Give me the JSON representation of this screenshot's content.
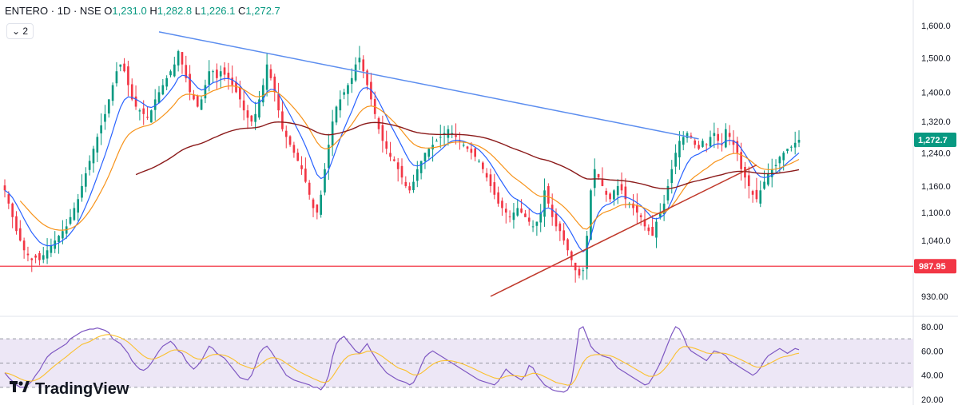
{
  "header": {
    "symbol": "ENTERO · 1D · NSE",
    "open_label": "O",
    "open": "1,231.0",
    "high_label": "H",
    "high": "1,282.8",
    "low_label": "L",
    "low": "1,226.1",
    "close_label": "C",
    "close": "1,272.7"
  },
  "count_button": {
    "chevron": "⌄",
    "label": "2"
  },
  "logo": {
    "text": "TradingView",
    "icon": "tradingview-logo-icon"
  },
  "colors": {
    "up": "#089981",
    "down": "#f23645",
    "ema_fast": "#2962ff",
    "ema_mid": "#f7931a",
    "ema_slow": "#8b1a1a",
    "resistance_line": "#5b8def",
    "support_line": "#c0392b",
    "horizontal_level": "#f23645",
    "rsi": "#7e57c2",
    "rsi_ma": "#fbc02d",
    "rsi_band": "#ede7f6"
  },
  "chart_data": [
    {
      "type": "candlestick",
      "symbol": "ENTERO",
      "interval": "1D",
      "exchange": "NSE",
      "yticks": [
        "1,600.0",
        "1,500.0",
        "1,400.0",
        "1,320.0",
        "1,240.0",
        "1,160.0",
        "1,100.0",
        "1,040.0",
        "930.00"
      ],
      "ylim": [
        900,
        1650
      ],
      "y_scale": "log",
      "last_price_label": "1,272.7",
      "level_label": "987.95",
      "level_value": 987.95,
      "ohlc_last": {
        "open": 1231.0,
        "high": 1282.8,
        "low": 1226.1,
        "close": 1272.7
      },
      "closes": [
        1150,
        1120,
        1090,
        1060,
        1040,
        1020,
        1010,
        1000,
        1005,
        1000,
        1010,
        1020,
        1030,
        1040,
        1050,
        1060,
        1070,
        1090,
        1110,
        1130,
        1160,
        1190,
        1220,
        1250,
        1280,
        1310,
        1340,
        1380,
        1420,
        1460,
        1480,
        1460,
        1420,
        1380,
        1360,
        1350,
        1340,
        1330,
        1350,
        1380,
        1400,
        1420,
        1440,
        1460,
        1480,
        1520,
        1480,
        1440,
        1400,
        1380,
        1360,
        1380,
        1420,
        1460,
        1460,
        1440,
        1460,
        1450,
        1440,
        1420,
        1400,
        1380,
        1350,
        1330,
        1320,
        1340,
        1380,
        1420,
        1480,
        1440,
        1400,
        1350,
        1300,
        1280,
        1260,
        1240,
        1220,
        1200,
        1170,
        1140,
        1110,
        1100,
        1140,
        1200,
        1260,
        1320,
        1360,
        1380,
        1400,
        1420,
        1440,
        1480,
        1500,
        1460,
        1420,
        1380,
        1340,
        1300,
        1270,
        1250,
        1230,
        1220,
        1200,
        1180,
        1160,
        1150,
        1170,
        1200,
        1220,
        1240,
        1250,
        1260,
        1270,
        1280,
        1290,
        1300,
        1290,
        1280,
        1270,
        1260,
        1250,
        1240,
        1230,
        1220,
        1200,
        1180,
        1160,
        1140,
        1120,
        1110,
        1100,
        1090,
        1100,
        1110,
        1100,
        1090,
        1080,
        1070,
        1080,
        1100,
        1150,
        1120,
        1090,
        1070,
        1060,
        1040,
        1020,
        1000,
        980,
        970,
        980,
        1050,
        1150,
        1200,
        1180,
        1160,
        1140,
        1130,
        1150,
        1160,
        1150,
        1130,
        1120,
        1110,
        1100,
        1090,
        1070,
        1060,
        1050,
        1080,
        1100,
        1120,
        1160,
        1200,
        1240,
        1270,
        1280,
        1290,
        1280,
        1260,
        1250,
        1270,
        1260,
        1280,
        1290,
        1270,
        1260,
        1300,
        1280,
        1260,
        1240,
        1200,
        1180,
        1160,
        1140,
        1130,
        1150,
        1170,
        1190,
        1200,
        1210,
        1230,
        1240,
        1250,
        1255,
        1265,
        1272.7
      ],
      "series": [
        {
          "name": "",
          "kind": "ema_fast"
        },
        {
          "name": "",
          "kind": "ema_mid"
        },
        {
          "name": "",
          "kind": "ema_slow"
        }
      ],
      "trendlines": [
        {
          "kind": "resistance",
          "from": {
            "x": 40,
            "y": 1580
          },
          "to": {
            "x": 180,
            "y": 1275
          }
        },
        {
          "kind": "support",
          "from": {
            "x": 126,
            "y": 930
          },
          "to": {
            "x": 195,
            "y": 1210
          }
        }
      ]
    },
    {
      "type": "line",
      "indicator": "RSI",
      "yticks": [
        "80.00",
        "60.00",
        "40.00",
        "20.00"
      ],
      "ylim": [
        18,
        85
      ],
      "bands": [
        70,
        50,
        30
      ],
      "values": [
        42,
        38,
        35,
        32,
        30,
        30,
        32,
        35,
        40,
        44,
        50,
        55,
        58,
        60,
        62,
        64,
        66,
        70,
        72,
        74,
        76,
        78,
        78,
        79,
        78,
        77,
        75,
        70,
        68,
        66,
        62,
        58,
        52,
        48,
        45,
        44,
        46,
        50,
        55,
        60,
        64,
        66,
        68,
        65,
        60,
        58,
        52,
        48,
        45,
        48,
        52,
        58,
        64,
        62,
        58,
        56,
        54,
        50,
        46,
        42,
        38,
        36,
        40,
        48,
        58,
        62,
        64,
        60,
        55,
        50,
        45,
        40,
        38,
        36,
        35,
        34,
        33,
        32,
        30,
        30,
        28,
        32,
        40,
        55,
        66,
        70,
        72,
        68,
        64,
        60,
        58,
        62,
        66,
        60,
        55,
        50,
        46,
        42,
        40,
        38,
        36,
        34,
        32,
        34,
        40,
        48,
        55,
        58,
        60,
        58,
        56,
        54,
        52,
        50,
        48,
        46,
        44,
        42,
        40,
        38,
        36,
        35,
        34,
        33,
        32,
        35,
        40,
        45,
        42,
        40,
        38,
        36,
        40,
        48,
        46,
        40,
        36,
        32,
        30,
        28,
        27,
        26,
        28,
        35,
        55,
        78,
        80,
        72,
        64,
        60,
        58,
        56,
        55,
        54,
        50,
        46,
        44,
        42,
        40,
        38,
        36,
        34,
        32,
        33,
        38,
        44,
        50,
        58,
        66,
        74,
        80,
        78,
        72,
        64,
        60,
        58,
        56,
        54,
        52,
        56,
        60,
        58,
        56,
        52,
        50,
        48,
        46,
        44,
        42,
        40,
        42,
        46,
        52,
        56,
        58,
        60,
        62,
        60,
        58,
        60,
        62,
        61
      ]
    }
  ]
}
